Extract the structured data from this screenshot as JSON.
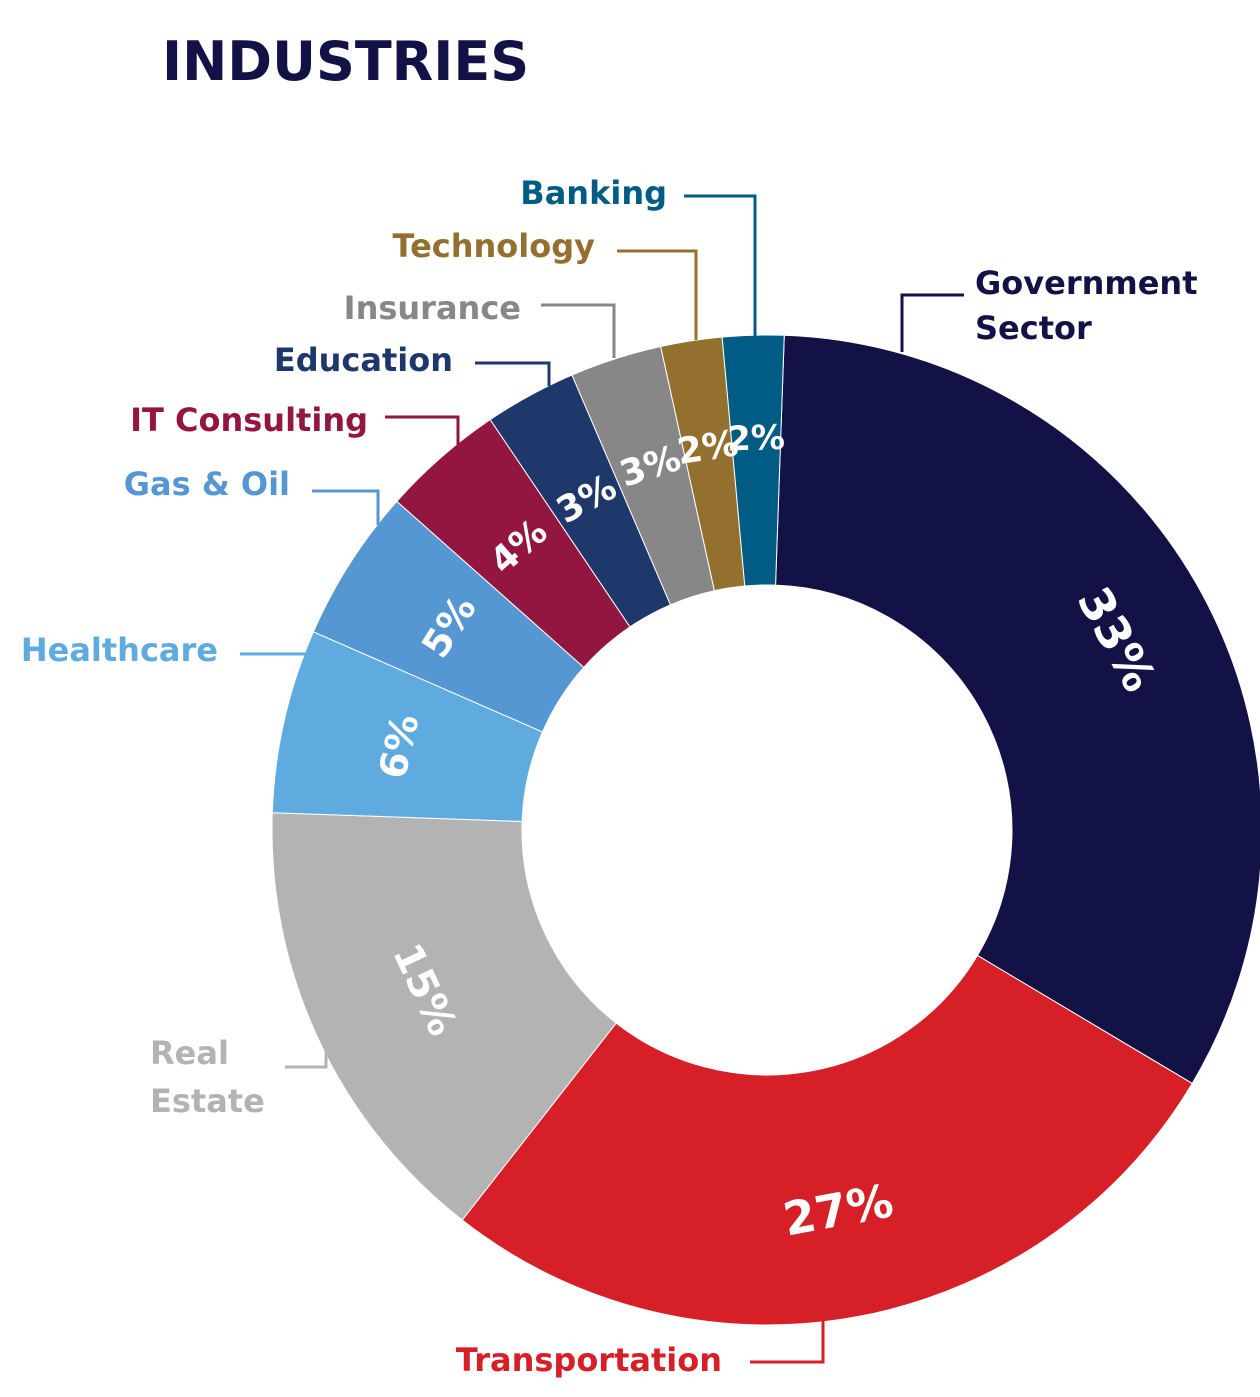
{
  "chart_data": {
    "type": "pie",
    "title": "INDUSTRIES",
    "donut": true,
    "series": [
      {
        "name": "Government Sector",
        "value": 33,
        "label": "33%",
        "color": "#131246",
        "legend_lines": [
          "Government",
          "Sector"
        ]
      },
      {
        "name": "Transportation",
        "value": 27,
        "label": "27%",
        "color": "#d71f28",
        "legend_lines": [
          "Transportation"
        ]
      },
      {
        "name": "Real Estate",
        "value": 15,
        "label": "15%",
        "color": "#b3b3b3",
        "legend_lines": [
          "Real",
          "Estate"
        ]
      },
      {
        "name": "Healthcare",
        "value": 6,
        "label": "6%",
        "color": "#5fabdf",
        "legend_lines": [
          "Healthcare"
        ]
      },
      {
        "name": "Gas & Oil",
        "value": 5,
        "label": "5%",
        "color": "#5597d3",
        "legend_lines": [
          "Gas & Oil"
        ]
      },
      {
        "name": "IT Consulting",
        "value": 4,
        "label": "4%",
        "color": "#921640",
        "legend_lines": [
          "IT Consulting"
        ]
      },
      {
        "name": "Education",
        "value": 3,
        "label": "3%",
        "color": "#1f386b",
        "legend_lines": [
          "Education"
        ]
      },
      {
        "name": "Insurance",
        "value": 3,
        "label": "3%",
        "color": "#878787",
        "legend_lines": [
          "Insurance"
        ]
      },
      {
        "name": "Technology",
        "value": 2,
        "label": "2%",
        "color": "#94702e",
        "legend_lines": [
          "Technology"
        ]
      },
      {
        "name": "Banking",
        "value": 2,
        "label": "2%",
        "color": "#005b85",
        "legend_lines": [
          "Banking"
        ]
      }
    ],
    "title_color": "#131246",
    "legend_text_colors": [
      "#131246",
      "#d71f28",
      "#b3b3b3",
      "#5fabdf",
      "#5597d3",
      "#921640",
      "#1f386b",
      "#878787",
      "#94702e",
      "#005b85"
    ]
  }
}
